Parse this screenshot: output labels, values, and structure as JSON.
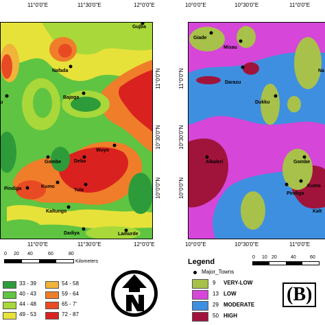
{
  "left_map": {
    "coords_top": [
      "11°0'0\"E",
      "11°30'0\"E",
      "12°0'0\"E"
    ],
    "coords_bottom": [
      "11°0'0\"E",
      "11°30'0\"E",
      "12°0'0\"E"
    ],
    "coords_right": [
      "11°0'0\"N",
      "10°30'0\"N",
      "10°0'0\"N"
    ],
    "towns": [
      "Gujba",
      "Nafada",
      "Bajoga",
      "Wuyo",
      "Gombe",
      "Deba",
      "Kumo",
      "Pindiga",
      "Tula",
      "Kaltungo",
      "Dadiya",
      "Lamurde",
      "u"
    ],
    "scale_ticks": [
      "0",
      "20",
      "40",
      "60",
      "80"
    ],
    "scale_unit": "Kilometers",
    "legend": [
      {
        "label": "33 - 39",
        "color": "#2e9b3a"
      },
      {
        "label": "54 - 58",
        "color": "#f0b43a"
      },
      {
        "label": "40 - 43",
        "color": "#5fc441"
      },
      {
        "label": "59 - 64",
        "color": "#ef7d2a"
      },
      {
        "label": "44 - 48",
        "color": "#a8d83a"
      },
      {
        "label": "65 - 7'",
        "color": "#e84b24"
      },
      {
        "label": "49 - 53",
        "color": "#e6e23a"
      },
      {
        "label": "72 - 87",
        "color": "#d9221f"
      }
    ]
  },
  "right_map": {
    "coords_top": [
      "10°0'0\"E",
      "10°30'0\"E",
      "11°0'0\"E"
    ],
    "coords_bottom": [
      "10°0'0\"E",
      "10°30'0\"E",
      "11°0'0\"E"
    ],
    "coords_left": [
      "11°0'0\"N",
      "10°30'0\"N",
      "10°0'0\"N"
    ],
    "towns": [
      "Giade",
      "Misau",
      "Darazu",
      "Dukku",
      "Alkaleri",
      "Gombe",
      "Kumo",
      "Pindiga",
      "Na",
      "Kalt"
    ],
    "scale_ticks": [
      "0",
      "10",
      "20",
      "40",
      "60"
    ],
    "legend_title": "Legend",
    "major_towns_label": "Major_Towns",
    "legend": [
      {
        "count": "9",
        "class": "VERY-LOW",
        "color": "#a8c14a"
      },
      {
        "count": "13",
        "class": "LOW",
        "color": "#d646d8"
      },
      {
        "count": "29",
        "class": "MODERATE",
        "color": "#3f8fe0"
      },
      {
        "count": "50",
        "class": "HIGH",
        "color": "#a0143c"
      }
    ],
    "panel_tag": "(B)"
  }
}
